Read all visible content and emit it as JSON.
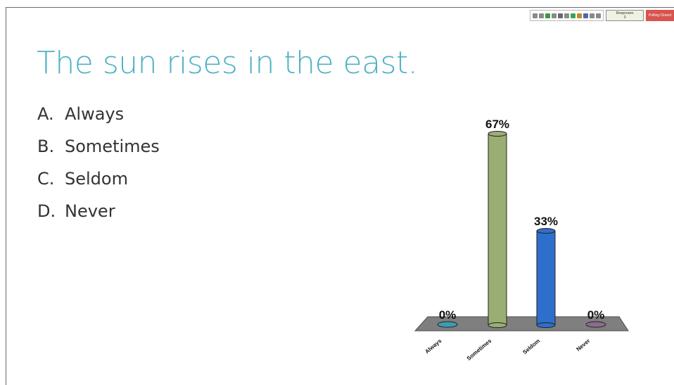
{
  "toolbar": {
    "icons": [
      "export-icon",
      "grid-icon",
      "refresh-icon",
      "chart-icon",
      "settings-icon",
      "star-icon",
      "pie-icon",
      "bar-icon",
      "shield-icon",
      "people-icon",
      "comment-icon"
    ],
    "responses_label": "Responses",
    "responses_count": "3",
    "polling_label": "Polling Closed"
  },
  "slide": {
    "question": "The sun rises in the east.",
    "options": [
      {
        "letter": "A.",
        "text": "Always"
      },
      {
        "letter": "B.",
        "text": "Sometimes"
      },
      {
        "letter": "C.",
        "text": "Seldom"
      },
      {
        "letter": "D.",
        "text": "Never"
      }
    ]
  },
  "chart_data": {
    "type": "bar",
    "categories": [
      "Always",
      "Sometimes",
      "Seldom",
      "Never"
    ],
    "values": [
      0,
      67,
      33,
      0
    ],
    "value_labels": [
      "0%",
      "67%",
      "33%",
      "0%"
    ],
    "colors": [
      "#3d9cb3",
      "#9aae74",
      "#2e6fcc",
      "#8a6a8c"
    ],
    "floor_color": "#7f7f7f",
    "ylim": [
      0,
      67
    ]
  }
}
